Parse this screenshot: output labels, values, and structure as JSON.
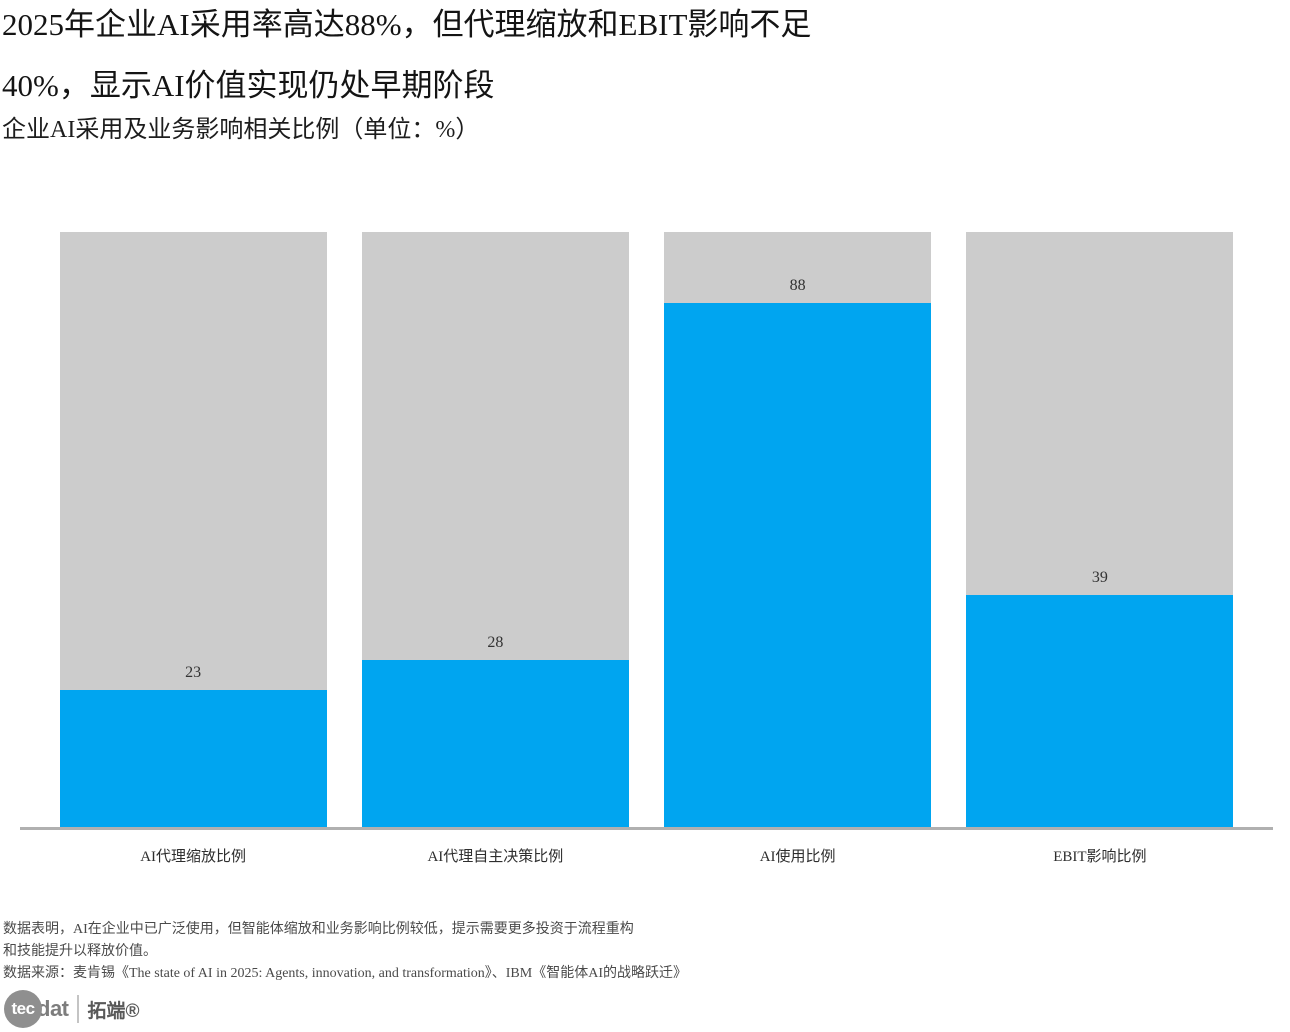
{
  "title": {
    "line1": "2025年企业AI采用率高达88%，但代理缩放和EBIT影响不足",
    "line2": "40%，显示AI价值实现仍处早期阶段",
    "subtitle": "企业AI采用及业务影响相关比例（单位：%）"
  },
  "chart_data": {
    "type": "bar",
    "title": "企业AI采用及业务影响相关比例（单位：%）",
    "categories": [
      "AI代理缩放比例",
      "AI代理自主决策比例",
      "AI使用比例",
      "EBIT影响比例"
    ],
    "values": [
      23,
      28,
      88,
      39
    ],
    "xlabel": "",
    "ylabel": "",
    "ylim": [
      0,
      100
    ],
    "grid": false,
    "legend": "none",
    "value_labels_shown": true,
    "track_full_height_value": 100
  },
  "footer": {
    "note_line1": "数据表明，AI在企业中已广泛使用，但智能体缩放和业务影响比例较低，提示需要更多投资于流程重构",
    "note_line2": "和技能提升以释放价值。",
    "source": "数据来源：麦肯锡《The state of AI in 2025: Agents, innovation, and transformation》、IBM《智能体AI的战略跃迁》"
  },
  "logo": {
    "text_tec": "tec",
    "text_dat": "dat",
    "brand_cn": "拓端®"
  },
  "colors": {
    "bar_fill": "#00a5f0",
    "bar_track": "#cccccc",
    "axis_line": "#b0b0b0",
    "value_label_text": "#333333"
  }
}
